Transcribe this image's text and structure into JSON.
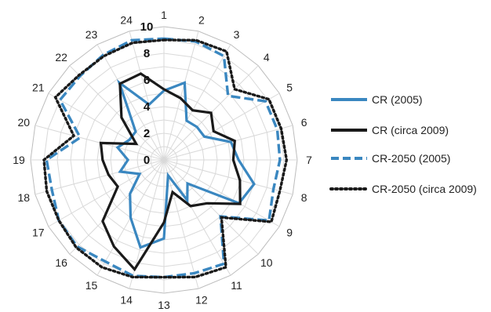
{
  "chart_data": {
    "type": "radar",
    "title": "",
    "categories": [
      "1",
      "2",
      "3",
      "4",
      "5",
      "6",
      "7",
      "8",
      "9",
      "10",
      "11",
      "12",
      "13",
      "14",
      "15",
      "16",
      "17",
      "18",
      "19",
      "20",
      "21",
      "22",
      "23",
      "24"
    ],
    "radial_ticks": [
      "0",
      "2",
      "4",
      "6",
      "8",
      "10"
    ],
    "rmax": 10,
    "grid": true,
    "legend_position": "right",
    "series": [
      {
        "name": "CR (2005)",
        "color": "#3A87C0",
        "style": "solid",
        "values": [
          5.2,
          6.0,
          3.4,
          3.5,
          3.5,
          5.2,
          5.6,
          7.0,
          6.5,
          2.5,
          3.5,
          1.2,
          5.9,
          6.8,
          5.0,
          3.6,
          2.1,
          3.4,
          2.7,
          3.6,
          3.0,
          3.0,
          6.7,
          4.3
        ]
      },
      {
        "name": "CR (circa 2009)",
        "color": "#1a1a1a",
        "style": "solid",
        "values": [
          5.3,
          4.8,
          4.3,
          5.0,
          4.3,
          5.5,
          5.2,
          5.9,
          6.6,
          4.6,
          4.0,
          2.5,
          4.7,
          8.5,
          7.5,
          6.5,
          4.0,
          4.3,
          4.6,
          4.9,
          2.4,
          4.5,
          6.6,
          6.7
        ]
      },
      {
        "name": "CR-2050 (2005)",
        "color": "#3A87C0",
        "style": "dashed",
        "values": [
          9.1,
          9.2,
          9.0,
          6.8,
          8.8,
          8.8,
          8.7,
          8.5,
          9.1,
          6.0,
          9.0,
          8.8,
          8.8,
          9.0,
          8.8,
          9.2,
          9.1,
          8.7,
          8.8,
          6.5,
          9.0,
          8.9,
          9.1,
          9.3
        ]
      },
      {
        "name": "CR-2050 (circa 2009)",
        "color": "#1a1a1a",
        "style": "dotted",
        "values": [
          9.0,
          9.3,
          9.4,
          7.5,
          9.1,
          9.1,
          9.2,
          9.0,
          9.3,
          6.1,
          9.3,
          9.1,
          8.8,
          9.1,
          9.3,
          9.3,
          9.1,
          9.1,
          9.0,
          7.0,
          9.4,
          9.0,
          9.0,
          9.1
        ]
      }
    ]
  }
}
